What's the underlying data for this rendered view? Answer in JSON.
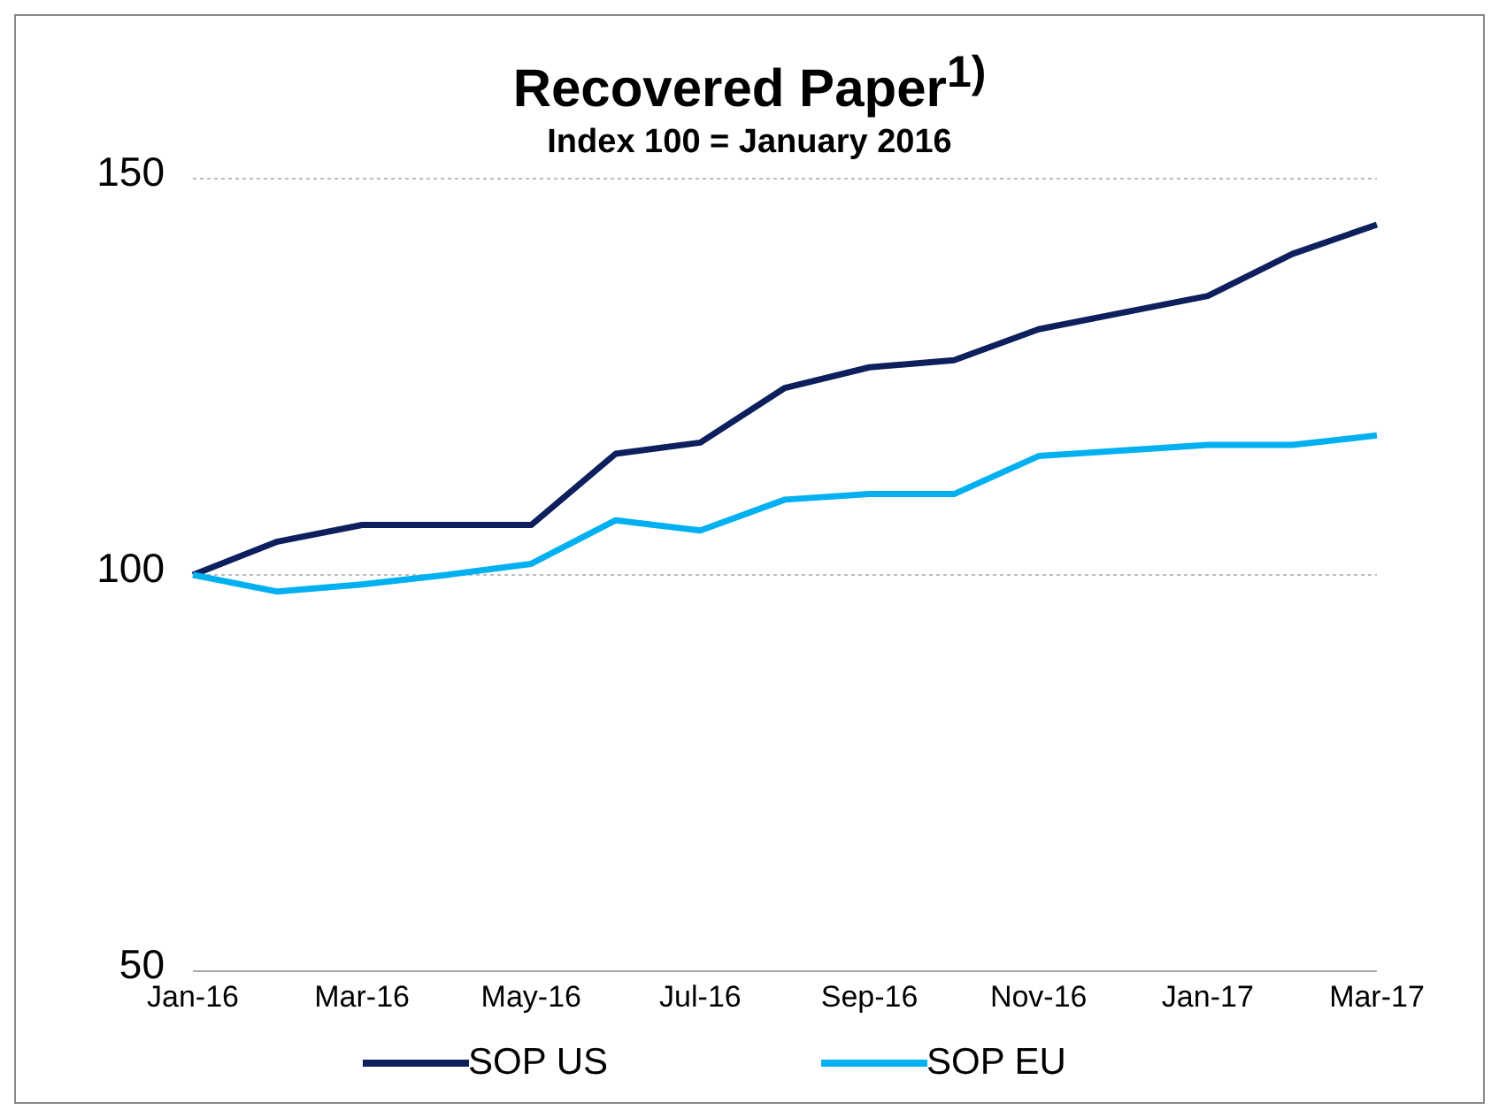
{
  "chart_data": {
    "type": "line",
    "title": "Recovered Paper$^{1)}$",
    "subtitle": "Index 100 = January 2016",
    "categories": [
      "Jan-16",
      null,
      "Mar-16",
      null,
      "May-16",
      null,
      "Jul-16",
      null,
      "Sep-16",
      null,
      "Nov-16",
      null,
      "Jan-17",
      null,
      "Mar-17"
    ],
    "series": [
      {
        "name": "SOP US",
        "color": "#0d1f5c",
        "values": [
          100,
          104.2,
          106.3,
          106.3,
          106.3,
          115.3,
          116.7,
          123.6,
          126.2,
          127.1,
          131,
          133.1,
          135.2,
          140.5,
          144.2
        ]
      },
      {
        "name": "SOP EU",
        "color": "#00b0f0",
        "values": [
          100,
          97.9,
          98.8,
          100,
          101.4,
          106.9,
          105.6,
          109.5,
          110.2,
          110.2,
          115,
          115.7,
          116.4,
          116.4,
          117.6
        ]
      }
    ],
    "ylim": [
      50,
      150
    ],
    "yticks": [
      50,
      100,
      150
    ],
    "grid": "y",
    "legend": "bottom",
    "marker": "none",
    "line_style": "solid"
  }
}
